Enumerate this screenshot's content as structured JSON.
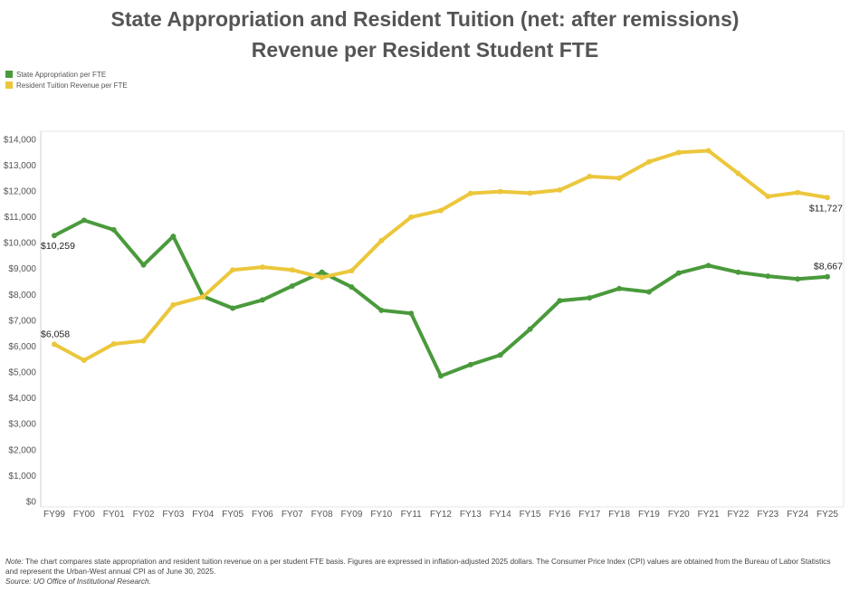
{
  "title_line1": "State Appropriation and Resident Tuition (net: after remissions)",
  "title_line2": "Revenue per Resident Student FTE",
  "colors": {
    "state": "#4a9a3c",
    "tuition": "#ecc73c"
  },
  "note": {
    "note_label": "Note:",
    "note_text": " The chart compares state appropriation and resident tuition revenue on a per student FTE basis. Figures are expressed in inflation-adjusted 2025 dollars. The Consumer Price Index (CPI) values are obtained from the Bureau of Labor Statistics and represent the Urban-West annual CPI as of June 30, 2025.",
    "source_label": "Source:",
    "source_text": " UO Office of Institutional Research."
  },
  "chart_data": {
    "type": "line",
    "title": "State Appropriation and Resident Tuition (net: after remissions) Revenue per Resident Student FTE",
    "legend_position": "top-left",
    "grid": false,
    "ylim": [
      0,
      14000
    ],
    "yticks": [
      "$0",
      "$1,000",
      "$2,000",
      "$3,000",
      "$4,000",
      "$5,000",
      "$6,000",
      "$7,000",
      "$8,000",
      "$9,000",
      "$10,000",
      "$11,000",
      "$12,000",
      "$13,000",
      "$14,000"
    ],
    "categories": [
      "FY99",
      "FY00",
      "FY01",
      "FY02",
      "FY03",
      "FY04",
      "FY05",
      "FY06",
      "FY07",
      "FY08",
      "FY09",
      "FY10",
      "FY11",
      "FY12",
      "FY13",
      "FY14",
      "FY15",
      "FY16",
      "FY17",
      "FY18",
      "FY19",
      "FY20",
      "FY21",
      "FY22",
      "FY23",
      "FY24",
      "FY25"
    ],
    "series": [
      {
        "name": "State Appropriation per FTE",
        "values": [
          10259,
          10850,
          10480,
          9120,
          10230,
          7910,
          7450,
          7770,
          8310,
          8840,
          8270,
          7370,
          7250,
          4830,
          5270,
          5640,
          6640,
          7740,
          7850,
          8210,
          8080,
          8810,
          9100,
          8840,
          8690,
          8580,
          8667
        ],
        "labels": {
          "first": "$10,259",
          "last": "$8,667"
        }
      },
      {
        "name": "Resident Tuition Revenue per FTE",
        "values": [
          6058,
          5440,
          6070,
          6190,
          7580,
          7890,
          8930,
          9040,
          8930,
          8640,
          8900,
          10060,
          10970,
          11230,
          11890,
          11960,
          11900,
          12020,
          12540,
          12480,
          13110,
          13470,
          13540,
          12660,
          11770,
          11920,
          11727
        ],
        "labels": {
          "first": "$6,058",
          "last": "$11,727"
        }
      }
    ]
  }
}
